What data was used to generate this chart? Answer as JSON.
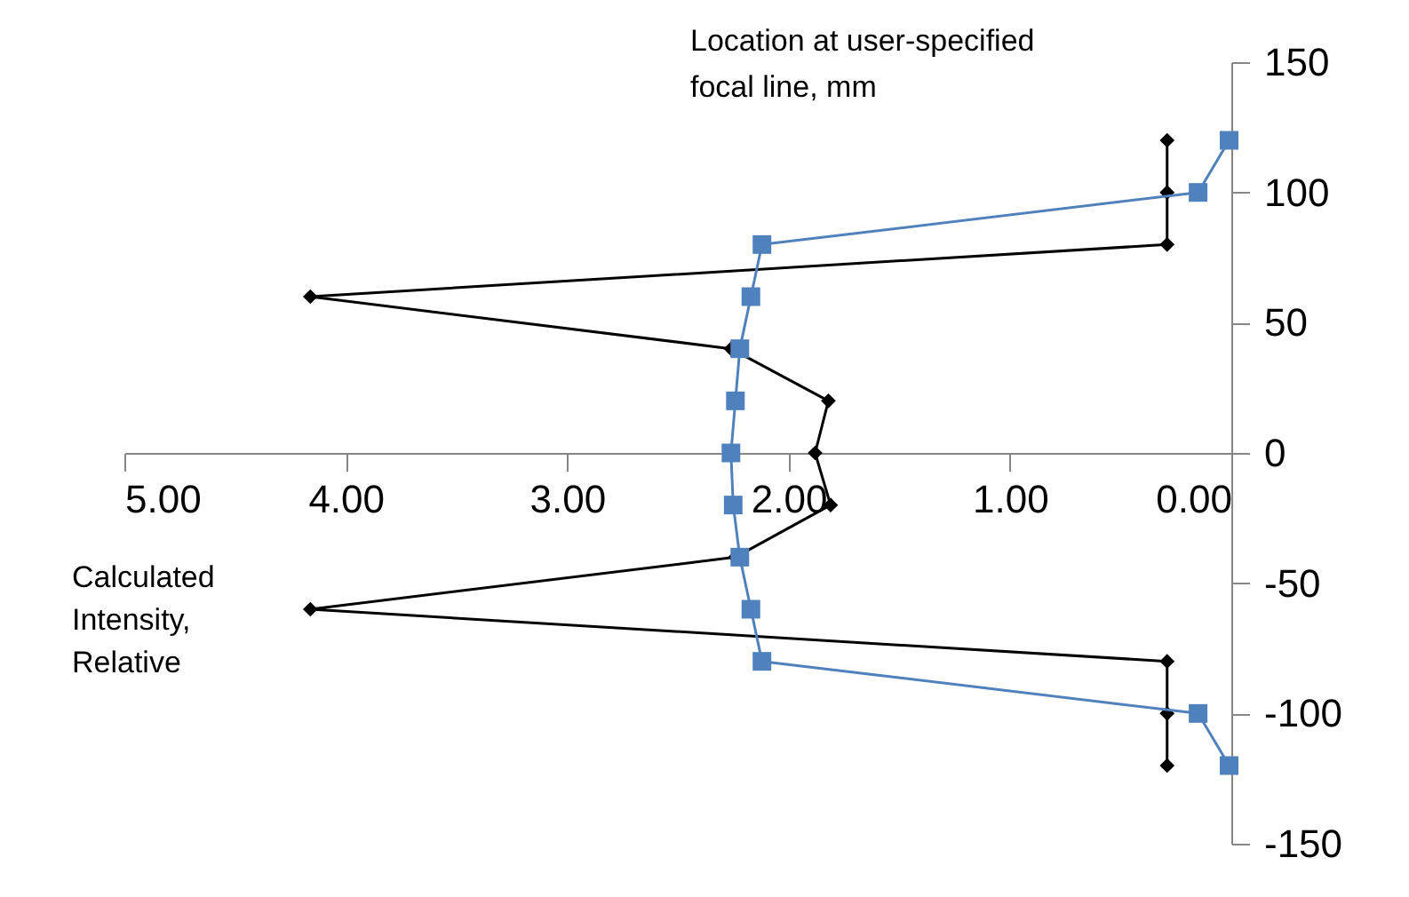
{
  "chart_data": {
    "type": "line",
    "xlabel": "Calculated Intensity, Relative",
    "ylabel": "Location at user-specified focal line, mm",
    "xlim": [
      5,
      0
    ],
    "xticks": [
      {
        "value": 5,
        "label": "5.00"
      },
      {
        "value": 4,
        "label": "4.00"
      },
      {
        "value": 3,
        "label": "3.00"
      },
      {
        "value": 2,
        "label": "2.00"
      },
      {
        "value": 1,
        "label": "1.00"
      },
      {
        "value": 0,
        "label": "0.00"
      }
    ],
    "ylim": [
      -150,
      150
    ],
    "yticks": [
      -150,
      -100,
      -50,
      0,
      50,
      100,
      150
    ],
    "grid": false,
    "line_style": "solid",
    "series": [
      {
        "color": "#000000",
        "marker": "diamond",
        "x": [
          0.29,
          0.29,
          0.29,
          4.16,
          2.26,
          1.82,
          1.88,
          1.81,
          2.24,
          4.16,
          0.29,
          0.29,
          0.29
        ],
        "values": [
          120,
          100,
          80,
          60,
          40,
          20,
          0,
          -20,
          -40,
          -60,
          -80,
          -100,
          -120
        ]
      },
      {
        "color": "#4f81bd",
        "marker": "square",
        "x": [
          0.01,
          0.15,
          2.12,
          2.17,
          2.22,
          2.24,
          2.26,
          2.25,
          2.22,
          2.17,
          2.12,
          0.15,
          0.01
        ],
        "values": [
          120,
          100,
          80,
          60,
          40,
          20,
          0,
          -20,
          -40,
          -60,
          -80,
          -100,
          -120
        ]
      }
    ]
  }
}
